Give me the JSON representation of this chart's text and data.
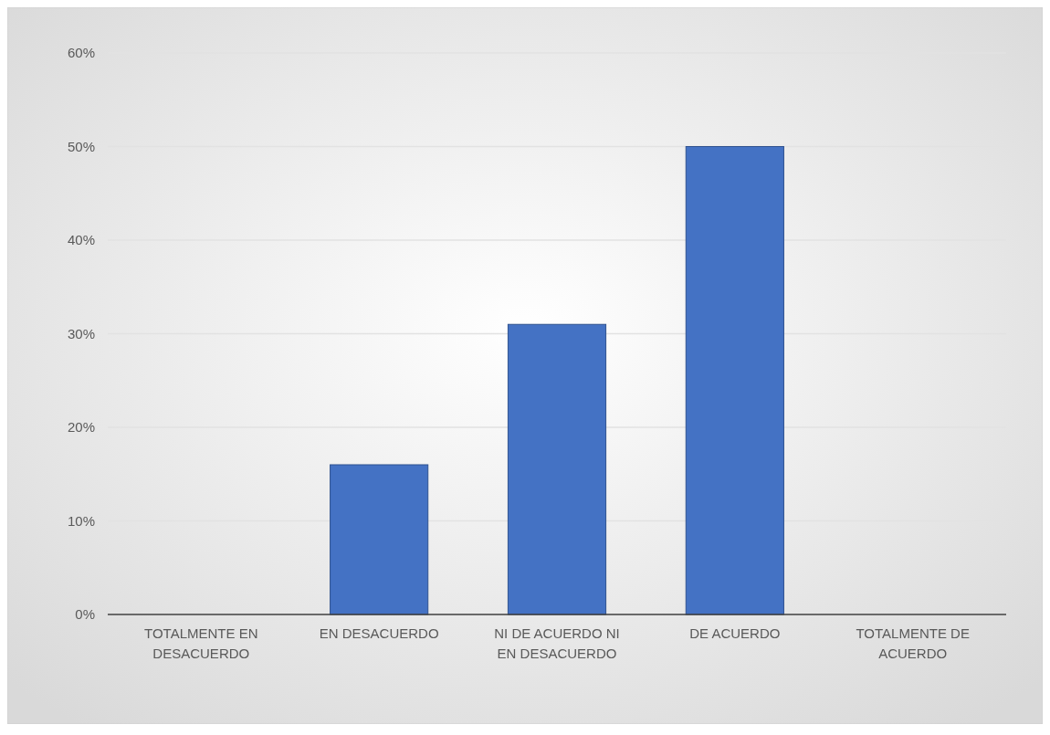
{
  "chart_data": {
    "type": "bar",
    "categories": [
      "TOTALMENTE EN DESACUERDO",
      "EN DESACUERDO",
      "NI DE ACUERDO NI EN DESACUERDO",
      "DE ACUERDO",
      "TOTALMENTE DE ACUERDO"
    ],
    "values": [
      0,
      16,
      31,
      50,
      0
    ],
    "color": "#4472c4",
    "ylim": [
      0,
      60
    ],
    "yticks": [
      {
        "value": 0,
        "label": "0%"
      },
      {
        "value": 10,
        "label": "10%"
      },
      {
        "value": 20,
        "label": "20%"
      },
      {
        "value": 30,
        "label": "30%"
      },
      {
        "value": 40,
        "label": "40%"
      },
      {
        "value": 50,
        "label": "50%"
      },
      {
        "value": 60,
        "label": "60%"
      }
    ],
    "grid": "y"
  }
}
